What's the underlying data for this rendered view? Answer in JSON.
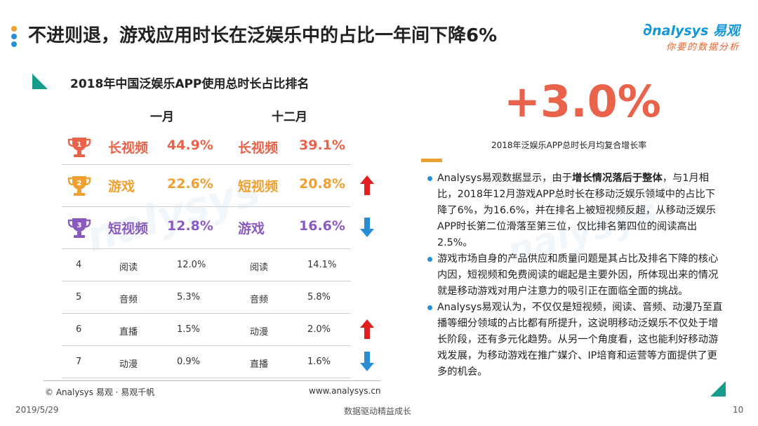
{
  "header": {
    "title": "不进则退，游戏应用时长在泛娱乐中的占比一年间下降6%",
    "dot_colors": [
      "#f0a030",
      "#2a8ed6",
      "#2a8ed6"
    ],
    "logo_text": "nalysys 易观",
    "logo_tagline": "你要的数据分析"
  },
  "section": {
    "title": "2018年中国泛娱乐APP使用总时长占比排名",
    "col_jan": "一月",
    "col_dec": "十二月"
  },
  "ranking": {
    "top": [
      {
        "rank": "1",
        "trophy_color": "#e8634a",
        "jan_name": "长视频",
        "jan_value": "44.9%",
        "dec_name": "长视频",
        "dec_value": "39.1%",
        "color": "#e8634a",
        "trend": "",
        "trophy_icon": "trophy-icon"
      },
      {
        "rank": "2",
        "trophy_color": "#f0a030",
        "jan_name": "游戏",
        "jan_value": "22.6%",
        "dec_name": "短视频",
        "dec_value": "20.8%",
        "color": "#f0a030",
        "trend": "up",
        "trophy_icon": "trophy-icon"
      },
      {
        "rank": "3",
        "trophy_color": "#8a5bbf",
        "jan_name": "短视频",
        "jan_value": "12.8%",
        "dec_name": "游戏",
        "dec_value": "16.6%",
        "color": "#8a5bbf",
        "trend": "down",
        "trophy_icon": "trophy-icon"
      }
    ],
    "rest": [
      {
        "rank": "4",
        "jan_name": "阅读",
        "jan_value": "12.0%",
        "dec_name": "阅读",
        "dec_value": "14.1%",
        "trend": ""
      },
      {
        "rank": "5",
        "jan_name": "音频",
        "jan_value": "5.3%",
        "dec_name": "音频",
        "dec_value": "5.8%",
        "trend": ""
      },
      {
        "rank": "6",
        "jan_name": "直播",
        "jan_value": "1.5%",
        "dec_name": "动漫",
        "dec_value": "2.0%",
        "trend": "up"
      },
      {
        "rank": "7",
        "jan_name": "动漫",
        "jan_value": "0.9%",
        "dec_name": "直播",
        "dec_value": "1.6%",
        "trend": "down"
      }
    ],
    "up_color": "#e02020",
    "down_color": "#2a8ed6"
  },
  "stat": {
    "value": "+3.0%",
    "label": "2018年泛娱乐APP总时长月均复合增长率"
  },
  "bullets": [
    {
      "before": "Analysys易观数据显示，由于",
      "bold": "增长情况落后于整体",
      "after": "，与1月相比，2018年12月游戏APP总时长在移动泛娱乐领域中的占比下降了6%，为16.6%，并在排名上被短视频反超，从移动泛娱乐APP时长第二位滑落至第三位，仅比排名第四位的阅读高出2.5%。"
    },
    {
      "before": "游戏市场自身的产品供应和质量问题是其占比及排名下降的核心内因，短视频和免费阅读的崛起是主要外因，所体现出来的情况就是移动游戏对用户注意力的吸引正在面临全面的挑战。",
      "bold": "",
      "after": ""
    },
    {
      "before": "Analysys易观认为，不仅仅是短视频，阅读、音频、动漫乃至直播等细分领域的占比都有所提升，这说明移动泛娱乐不仅处于增长阶段，还有多元化趋势。从另一个角度看，这也能利好移动游戏发展，为移动游戏在推广媒介、IP培育和运营等方面提供了更多的机会。",
      "bold": "",
      "after": ""
    }
  ],
  "footer": {
    "copyright": "© Analysys 易观 · 易观千帆",
    "website": "www.analysys.cn",
    "date": "2019/5/29",
    "slogan": "数据驱动精益成长",
    "page_number": "10"
  }
}
